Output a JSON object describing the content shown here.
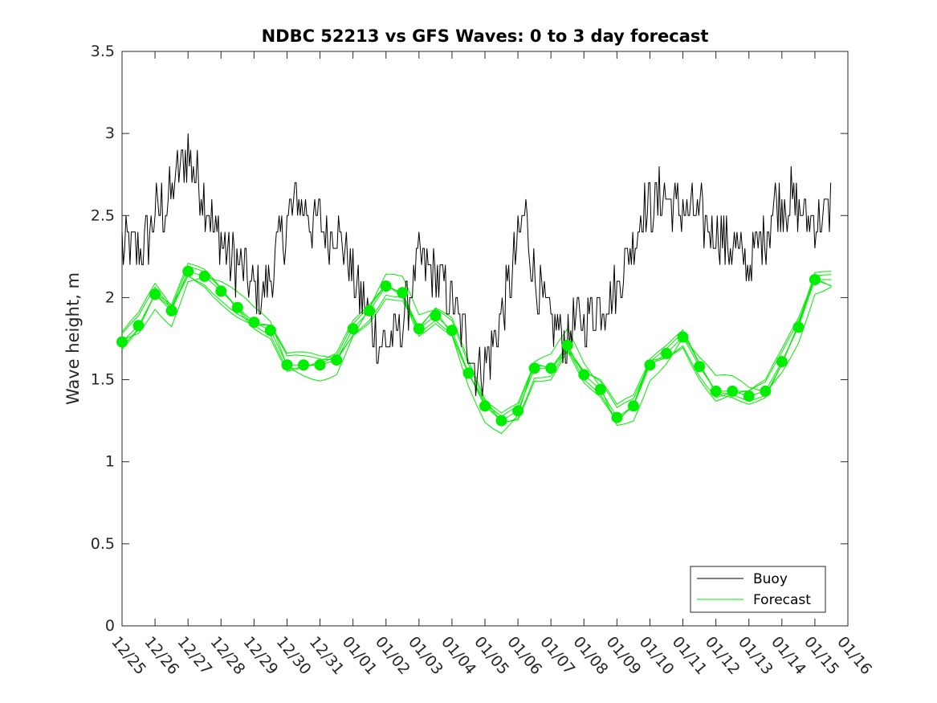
{
  "chart_data": {
    "type": "line",
    "title": "NDBC 52213 vs GFS Waves: 0 to 3 day forecast",
    "xlabel": "",
    "ylabel": "Wave height, m",
    "xlim": [
      0,
      22
    ],
    "ylim": [
      0,
      3.5
    ],
    "yticks": [
      0,
      0.5,
      1,
      1.5,
      2,
      2.5,
      3,
      3.5
    ],
    "ytick_labels": [
      "0",
      "0.5",
      "1",
      "1.5",
      "2",
      "2.5",
      "3",
      "3.5"
    ],
    "xtick_labels": [
      "12/25",
      "12/26",
      "12/27",
      "12/28",
      "12/29",
      "12/30",
      "12/31",
      "01/01",
      "01/02",
      "01/03",
      "01/04",
      "01/05",
      "01/06",
      "01/07",
      "01/08",
      "01/09",
      "01/10",
      "01/11",
      "01/12",
      "01/13",
      "01/14",
      "01/15",
      "01/16"
    ],
    "legend": {
      "placement": "bottom-right",
      "entries": [
        "Buoy",
        "Forecast"
      ]
    },
    "colors": {
      "buoy": "#000000",
      "forecast": "#00ee00",
      "axis": "#262626"
    },
    "buoy": {
      "name": "Buoy",
      "x": [
        0,
        0.25,
        0.5,
        0.75,
        1,
        1.25,
        1.5,
        1.75,
        2,
        2.25,
        2.5,
        2.75,
        3,
        3.25,
        3.5,
        3.75,
        4,
        4.25,
        4.5,
        4.75,
        5,
        5.25,
        5.5,
        5.75,
        6,
        6.25,
        6.5,
        6.75,
        7,
        7.25,
        7.5,
        7.75,
        8,
        8.25,
        8.5,
        8.75,
        9,
        9.25,
        9.5,
        9.75,
        10,
        10.25,
        10.5,
        10.75,
        11,
        11.25,
        11.5,
        11.75,
        12,
        12.25,
        12.5,
        12.75,
        13,
        13.25,
        13.5,
        13.75,
        14,
        14.25,
        14.5,
        14.75,
        15,
        15.25,
        15.5,
        15.75,
        16,
        16.25,
        16.5,
        16.75,
        17,
        17.25,
        17.5,
        17.75,
        18,
        18.25,
        18.5,
        18.75,
        19,
        19.25,
        19.5,
        19.75,
        20,
        20.25,
        20.5,
        20.75,
        21,
        21.25,
        21.5
      ],
      "y": [
        2.3,
        2.3,
        2.3,
        2.35,
        2.5,
        2.55,
        2.6,
        2.8,
        2.9,
        2.75,
        2.6,
        2.45,
        2.35,
        2.25,
        2.2,
        2.15,
        2.05,
        2.0,
        2.1,
        2.3,
        2.45,
        2.6,
        2.55,
        2.45,
        2.45,
        2.4,
        2.4,
        2.3,
        2.15,
        2.0,
        1.85,
        1.75,
        1.7,
        1.75,
        1.85,
        2.05,
        2.2,
        2.2,
        2.15,
        2.05,
        1.95,
        1.85,
        1.75,
        1.55,
        1.6,
        1.7,
        1.9,
        2.1,
        2.35,
        2.5,
        2.1,
        1.95,
        1.85,
        1.8,
        1.75,
        1.85,
        1.85,
        1.9,
        1.95,
        2.0,
        2.05,
        2.2,
        2.35,
        2.5,
        2.55,
        2.6,
        2.6,
        2.55,
        2.55,
        2.5,
        2.5,
        2.45,
        2.4,
        2.35,
        2.3,
        2.25,
        2.2,
        2.3,
        2.4,
        2.55,
        2.6,
        2.6,
        2.55,
        2.5,
        2.5,
        2.5,
        2.55
      ]
    },
    "forecast_markers": {
      "name": "Forecast (analysis points)",
      "x": [
        0,
        0.5,
        1,
        1.5,
        2,
        2.5,
        3,
        3.5,
        4,
        4.5,
        5,
        5.5,
        6,
        6.5,
        7,
        7.5,
        8,
        8.5,
        9,
        9.5,
        10,
        10.5,
        11,
        11.5,
        12,
        12.5,
        13,
        13.5,
        14,
        14.5,
        15,
        15.5,
        16,
        16.5,
        17,
        17.5,
        18,
        18.5,
        19,
        19.5,
        20,
        20.5,
        21
      ],
      "y": [
        1.73,
        1.83,
        2.02,
        1.92,
        2.16,
        2.13,
        2.04,
        1.94,
        1.85,
        1.8,
        1.59,
        1.59,
        1.59,
        1.62,
        1.81,
        1.92,
        2.07,
        2.03,
        1.81,
        1.89,
        1.8,
        1.54,
        1.34,
        1.25,
        1.31,
        1.57,
        1.57,
        1.71,
        1.53,
        1.44,
        1.27,
        1.34,
        1.59,
        1.66,
        1.76,
        1.58,
        1.43,
        1.43,
        1.4,
        1.43,
        1.61,
        1.82,
        2.11
      ]
    }
  }
}
